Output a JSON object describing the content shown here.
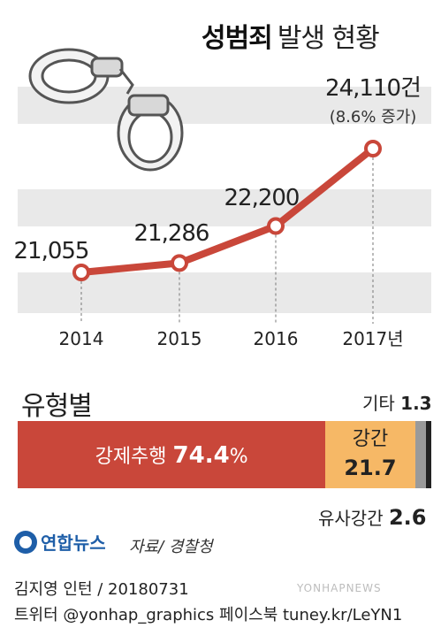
{
  "title": {
    "bold": "성범죄",
    "rest": "발생 현황"
  },
  "chart_data": {
    "type": "line",
    "title": "성범죄 발생 현황",
    "x": [
      "2014",
      "2015",
      "2016",
      "2017년"
    ],
    "series": [
      {
        "values": [
          21055,
          21286,
          22200,
          24110
        ]
      }
    ],
    "data_labels": [
      "21,055",
      "21,286",
      "22,200",
      "24,110건"
    ],
    "annotation": "(8.6% 증가)",
    "line_color": "#c9473a",
    "band_color": "#e9e9e9",
    "grid": false
  },
  "breakdown": {
    "title": "유형별",
    "unit": "%",
    "segments": [
      {
        "name": "강제추행",
        "value": 74.4,
        "label": "74.4",
        "color": "#c9473a"
      },
      {
        "name": "강간",
        "value": 21.7,
        "label": "21.7",
        "color": "#f6b866"
      },
      {
        "name": "유사강간",
        "value": 2.6,
        "label": "2.6",
        "color": "#9a9a9a"
      },
      {
        "name": "기타",
        "value": 1.3,
        "label": "1.3",
        "color": "#222222"
      }
    ]
  },
  "logo": "연합뉴스",
  "source": "자료/ 경찰청",
  "credit": "김지영 인턴 / 20180731",
  "social": "트위터 @yonhap_graphics  페이스북 tuney.kr/LeYN1",
  "watermark": "YONHAPNEWS"
}
